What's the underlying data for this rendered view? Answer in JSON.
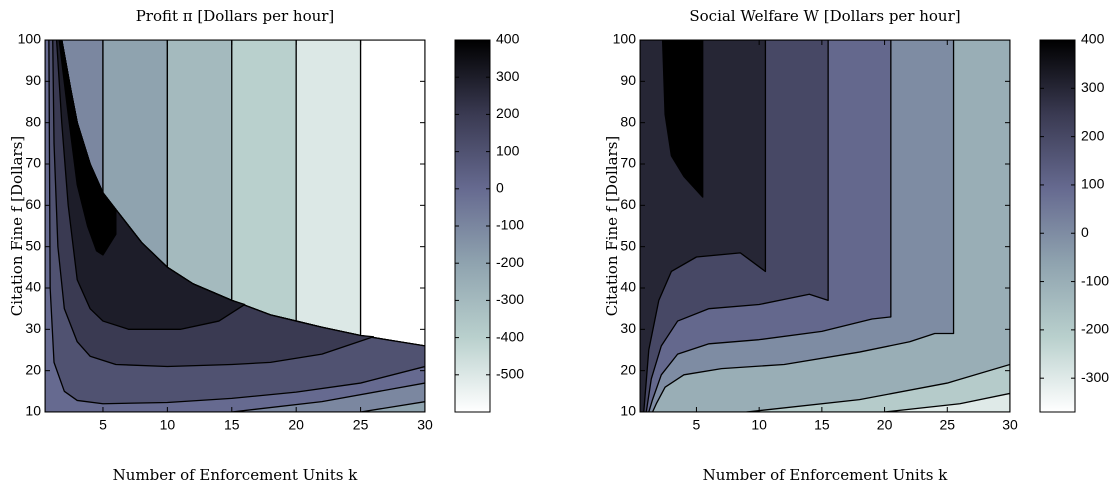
{
  "chart_data": [
    {
      "type": "contour",
      "title": "Profit π [Dollars per hour]",
      "xlabel": "Number of Enforcement Units k",
      "ylabel": "Citation Fine f [Dollars]",
      "xlim": [
        0.5,
        30
      ],
      "ylim": [
        10,
        100
      ],
      "xticks": [
        5,
        10,
        15,
        20,
        25,
        30
      ],
      "yticks": [
        10,
        20,
        30,
        40,
        50,
        60,
        70,
        80,
        90,
        100
      ],
      "clim": [
        -600,
        400
      ],
      "cticks": [
        400,
        300,
        200,
        100,
        0,
        -100,
        -200,
        -300,
        -400,
        -500
      ],
      "colormap": [
        "#ffffff",
        "#b9d0cd",
        "#8fa3af",
        "#666a90",
        "#3a3a52",
        "#000000"
      ],
      "regions": [
        {
          "level": -100,
          "x": [
            1.8,
            5,
            5,
            4,
            3,
            2.5
          ],
          "y": [
            100,
            100,
            63,
            70,
            80,
            88
          ]
        },
        {
          "level": -200,
          "x": [
            5,
            10,
            10,
            8,
            6,
            5
          ],
          "y": [
            100,
            100,
            45,
            51,
            59,
            63
          ]
        },
        {
          "level": -300,
          "x": [
            10,
            15,
            15,
            12,
            10
          ],
          "y": [
            100,
            100,
            37,
            41,
            45
          ]
        },
        {
          "level": -400,
          "x": [
            15,
            20,
            20,
            18,
            15
          ],
          "y": [
            100,
            100,
            32,
            33.5,
            37
          ]
        },
        {
          "level": -500,
          "x": [
            20,
            25,
            25,
            22,
            20
          ],
          "y": [
            100,
            100,
            28.5,
            30.5,
            32
          ]
        },
        {
          "level": -600,
          "x": [
            25,
            30,
            30,
            28,
            25
          ],
          "y": [
            100,
            100,
            26,
            27,
            28.5
          ]
        },
        {
          "level": 0,
          "x": [
            0.5,
            1.8,
            2.5,
            3,
            4,
            5,
            6,
            8,
            10,
            12,
            15,
            18,
            20,
            22,
            25,
            28,
            30,
            30,
            0.5
          ],
          "y": [
            100,
            100,
            88,
            80,
            70,
            63,
            59,
            51,
            45,
            41,
            37,
            33.5,
            32,
            30.5,
            28.5,
            27,
            26,
            10,
            10
          ]
        },
        {
          "level": -100,
          "x": [
            15,
            22,
            30,
            30
          ],
          "y": [
            10,
            12.5,
            17,
            10
          ]
        },
        {
          "level": -200,
          "x": [
            25,
            30,
            30
          ],
          "y": [
            10,
            12.5,
            10
          ]
        },
        {
          "level": 100,
          "x": [
            0.8,
            1.8,
            2.5,
            3,
            4,
            5,
            6,
            8,
            10,
            12,
            15,
            18,
            20,
            22,
            25,
            28,
            30,
            30,
            25,
            20,
            15,
            10,
            5,
            3,
            2,
            1.2,
            0.9
          ],
          "y": [
            100,
            100,
            88,
            80,
            70,
            63,
            59,
            51,
            45,
            41,
            37,
            33.5,
            32,
            30.5,
            28.5,
            27,
            26,
            21,
            17,
            14.8,
            13.3,
            12.3,
            12,
            12.8,
            15,
            22,
            40
          ]
        },
        {
          "level": 200,
          "x": [
            1.1,
            1.8,
            2.5,
            3,
            4,
            5,
            6,
            8,
            10,
            12,
            15,
            18,
            20,
            22,
            25,
            26,
            22,
            18,
            15,
            10,
            6,
            4,
            3,
            2,
            1.5,
            1.2
          ],
          "y": [
            100,
            100,
            88,
            80,
            70,
            63,
            59,
            51,
            45,
            41,
            37,
            33.5,
            32,
            30.5,
            28.5,
            28.2,
            24,
            22,
            21.5,
            21,
            21.5,
            23.5,
            27,
            35,
            50,
            75
          ]
        },
        {
          "level": 300,
          "x": [
            1.4,
            1.8,
            2.5,
            3,
            4,
            5,
            6,
            8,
            10,
            12,
            15,
            16,
            14,
            11,
            7,
            5,
            4,
            3,
            2.3,
            1.8
          ],
          "y": [
            100,
            100,
            88,
            80,
            70,
            63,
            59,
            51,
            45,
            41,
            37,
            36,
            32,
            30,
            30,
            32,
            35,
            42,
            60,
            80
          ]
        },
        {
          "level": 400,
          "x": [
            1.6,
            1.8,
            2.5,
            3,
            4,
            5,
            6,
            6,
            5,
            4.5,
            3.8,
            3,
            2.3
          ],
          "y": [
            100,
            100,
            88,
            80,
            70,
            63,
            59,
            53,
            48,
            49,
            55,
            65,
            82
          ]
        }
      ]
    },
    {
      "type": "contour",
      "title": "Social Welfare W [Dollars per hour]",
      "xlabel": "Number of Enforcement Units k",
      "ylabel": "Citation Fine f [Dollars]",
      "xlim": [
        0.5,
        30
      ],
      "ylim": [
        10,
        100
      ],
      "xticks": [
        5,
        10,
        15,
        20,
        25,
        30
      ],
      "yticks": [
        10,
        20,
        30,
        40,
        50,
        60,
        70,
        80,
        90,
        100
      ],
      "clim": [
        -370,
        400
      ],
      "cticks": [
        400,
        300,
        200,
        100,
        0,
        -100,
        -200,
        -300
      ],
      "colormap": [
        "#ffffff",
        "#b9d0cd",
        "#8fa3af",
        "#666a90",
        "#3a3a52",
        "#000000"
      ],
      "regions": [
        {
          "level": -100,
          "x": [
            0.5,
            30,
            30,
            0.5
          ],
          "y": [
            100,
            100,
            10,
            10
          ]
        },
        {
          "level": -200,
          "x": [
            9,
            18,
            25,
            30,
            30
          ],
          "y": [
            10,
            13,
            17,
            21.5,
            10
          ]
        },
        {
          "level": -300,
          "x": [
            20,
            26,
            30,
            30
          ],
          "y": [
            10,
            12,
            14.5,
            10
          ]
        },
        {
          "level": 0,
          "x": [
            0.5,
            25.5,
            25.5,
            24,
            22,
            18,
            12,
            7,
            4,
            2.5,
            1.8,
            1.5,
            0.5
          ],
          "y": [
            100,
            100,
            29,
            29,
            27,
            24.5,
            21.5,
            20.5,
            19,
            16,
            12,
            10,
            10
          ]
        },
        {
          "level": 100,
          "x": [
            0.5,
            20.5,
            20.5,
            19,
            15,
            10,
            6,
            3.5,
            2.2,
            1.5,
            1.2,
            0.5
          ],
          "y": [
            100,
            100,
            33,
            32.5,
            29.5,
            27.5,
            26.5,
            24,
            19,
            13,
            10,
            10
          ]
        },
        {
          "level": 200,
          "x": [
            0.5,
            15.5,
            15.5,
            14,
            10,
            6,
            3.5,
            2.2,
            1.4,
            1,
            0.5
          ],
          "y": [
            100,
            100,
            37,
            38.5,
            36,
            35,
            32,
            26,
            18,
            10,
            10
          ]
        },
        {
          "level": 300,
          "x": [
            0.5,
            10.5,
            10.5,
            8.5,
            5,
            3,
            2,
            1.2,
            0.8,
            0.5
          ],
          "y": [
            100,
            100,
            44,
            48.5,
            47.5,
            44,
            37,
            25,
            10,
            10
          ]
        },
        {
          "level": 400,
          "x": [
            2.3,
            5.5,
            5.5,
            4,
            3,
            2.5
          ],
          "y": [
            100,
            100,
            62,
            67,
            72,
            82
          ]
        }
      ]
    }
  ]
}
